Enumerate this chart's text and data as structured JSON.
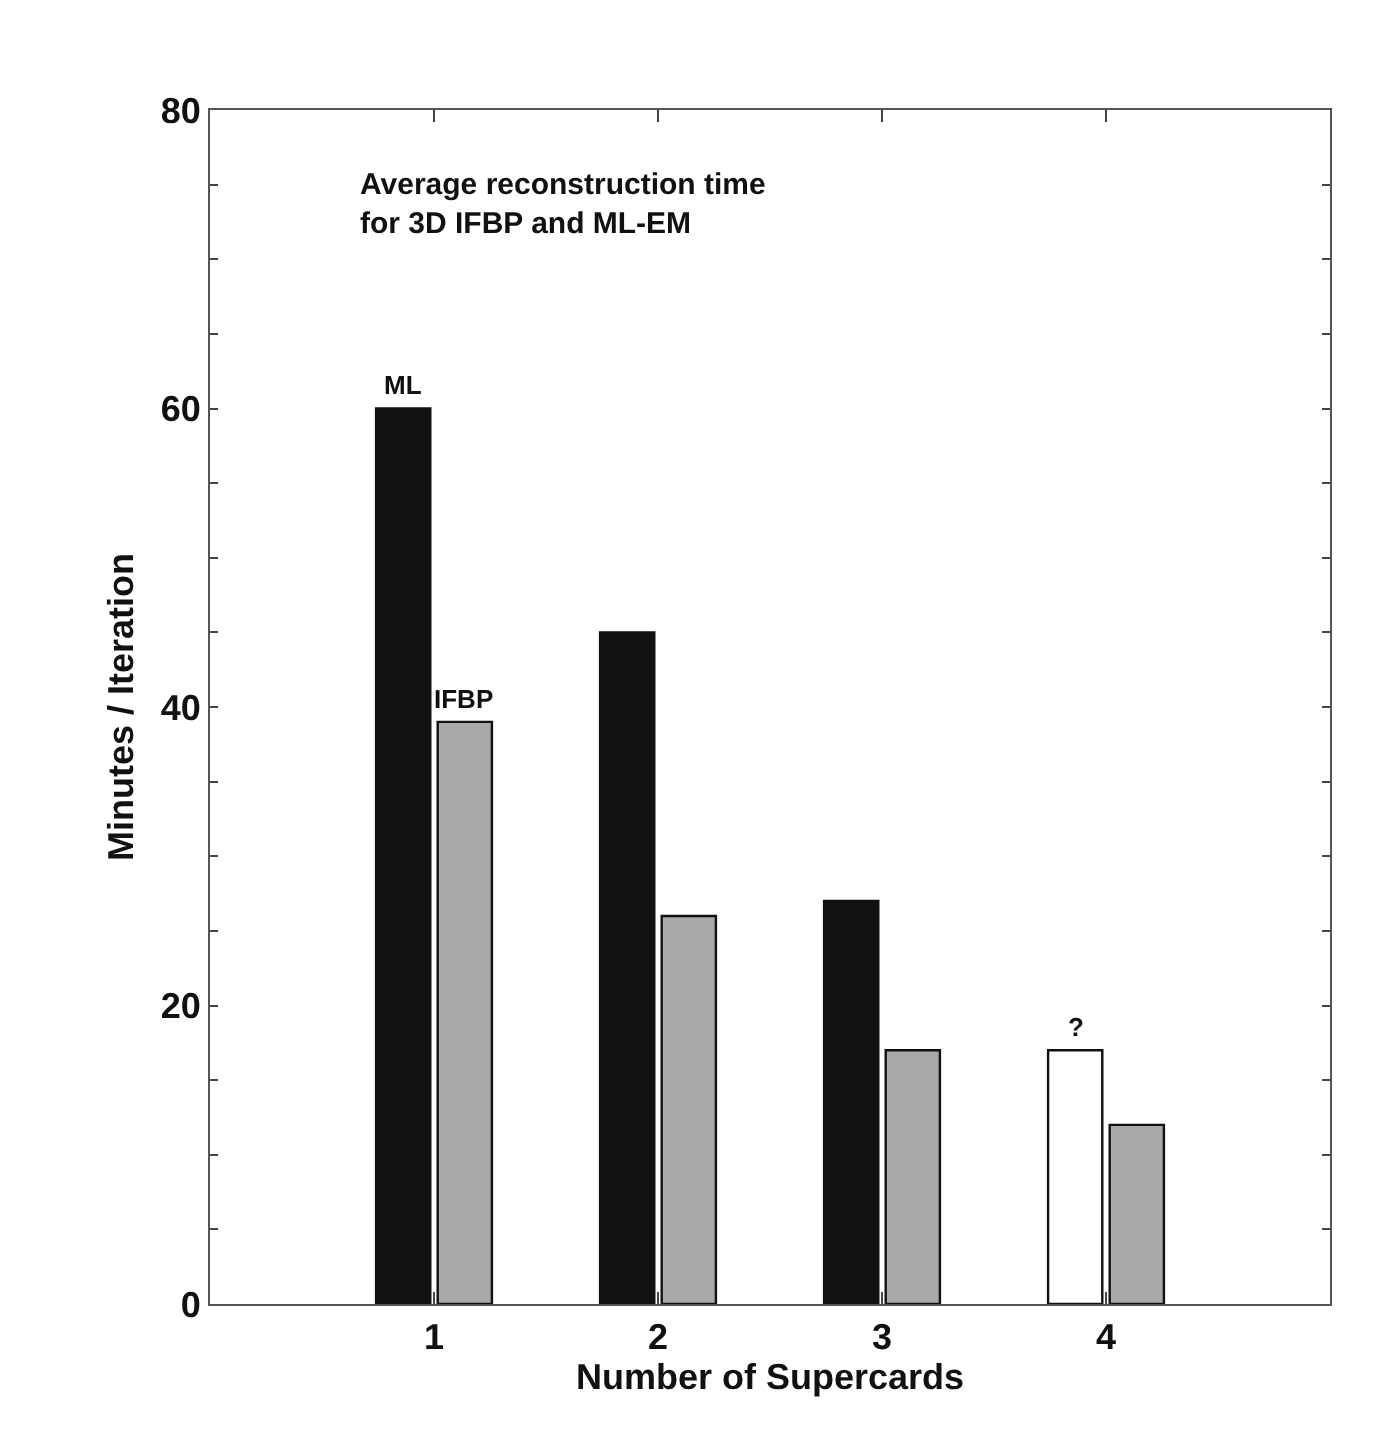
{
  "chart_data": {
    "type": "bar",
    "title": "Average reconstruction time\nfor 3D IFBP and ML-EM",
    "xlabel": "Number of Supercards",
    "ylabel": "Minutes / Iteration",
    "categories": [
      "1",
      "2",
      "3",
      "4"
    ],
    "series": [
      {
        "name": "ML",
        "colors": [
          "#111111",
          "#111111",
          "#111111",
          "#ffffff"
        ],
        "values": [
          60,
          45,
          27,
          17
        ]
      },
      {
        "name": "IFBP",
        "color": "#a9a9a9",
        "values": [
          39,
          26,
          17,
          12
        ]
      }
    ],
    "annotations": [
      {
        "text": "?",
        "x": "4",
        "y": 17
      }
    ],
    "ylim": [
      0,
      80
    ],
    "yticks": [
      0,
      {
        "value": 5,
        "label": null
      },
      {
        "value": 10,
        "label": null
      },
      {
        "value": 15,
        "label": null
      },
      20,
      {
        "value": 25,
        "label": null
      },
      {
        "value": 30,
        "label": null
      },
      {
        "value": 35,
        "label": null
      },
      40,
      {
        "value": 45,
        "label": null
      },
      {
        "value": 50,
        "label": null
      },
      {
        "value": 55,
        "label": null
      },
      60,
      {
        "value": 65,
        "label": null
      },
      {
        "value": 70,
        "label": null
      },
      {
        "value": 75,
        "label": null
      },
      80
    ],
    "grid": false,
    "legend": false
  }
}
